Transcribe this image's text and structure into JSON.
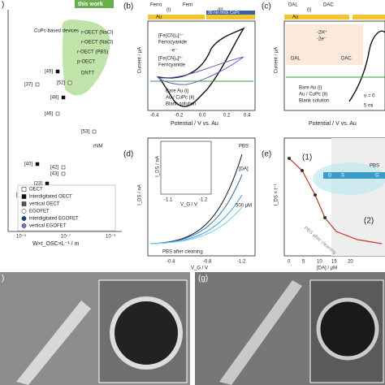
{
  "panel_a": {
    "label": ")",
    "this_work": "this work",
    "cupc": "CuPc-based devices",
    "devices": [
      "r-OECT (NaCl)",
      "r-OECT (NaCl)",
      "r-OECT (PBS)",
      "p-OECT",
      "DNTT",
      "rNM"
    ],
    "refs": [
      "[49]",
      "[37]",
      "[52]",
      "[48]",
      "[46]",
      "[53]",
      "[40]",
      "[42]",
      "[43]",
      "[23]",
      "[21]",
      "[51]",
      "[50]",
      "[45]",
      "[55]"
    ],
    "legend": [
      "OECT",
      "interdigitated OECT",
      "vertical OECT",
      "EGOFET",
      "interdigitated EGOFET",
      "vertical EGOFET"
    ],
    "xlabel": "W×t_OSC×L⁻¹ / m",
    "xticks": [
      "10⁻⁵",
      "10⁻⁷",
      "10⁻⁹"
    ]
  },
  "panel_b": {
    "label": "(b)",
    "top": [
      "Ferro",
      "(i)",
      "Ferri",
      "(ii)"
    ],
    "au": "Au",
    "film": "30 nm thick CuPc",
    "species": [
      "[Fe(CN)₆]⁴⁻",
      "Ferrocyanide",
      "-e⁻",
      "[Fe(CN)₆]³⁻",
      "Ferricyanide"
    ],
    "ylabel": "Current / μA",
    "xlabel": "Potential / V vs. Au",
    "xticks": [
      "-0.4",
      "-0.2",
      "0.0",
      "0.2",
      "0.4"
    ],
    "legend": [
      "Bare Au (i)",
      "Au / CuPc (ii)",
      "Blank solution"
    ]
  },
  "panel_c": {
    "label": "(c)",
    "top": [
      "DAL",
      "(i)",
      "DAC"
    ],
    "au": "Au",
    "species": [
      "DAL",
      "-2H⁺",
      "-2e⁻",
      "DAC"
    ],
    "ylabel": "Current / μA",
    "xlabel": "Potential / V vs. Au",
    "legend": [
      "Bare Au (i)",
      "Au / CuPc (ii)",
      "Blank solution"
    ],
    "note": [
      "υ = 0",
      "5 mi"
    ]
  },
  "panel_d": {
    "label": "(d)",
    "ylabel": "I_DS / nA",
    "xlabel": "V_G / V",
    "xticks": [
      "-0.4",
      "-0.8",
      "-1.2"
    ],
    "inset_x": [
      "-1.1",
      "-1.2"
    ],
    "inset_ylabel": "I_DS / nA",
    "inset_xlabel": "V_G / V",
    "series_labels": [
      "PBS",
      "[DA]",
      "500 μM"
    ],
    "footer": "PBS after cleaning"
  },
  "panel_e": {
    "label": "(e)",
    "ylabel": "I_DS × t⁻¹",
    "xlabel": "[DA] / μM",
    "xticks": [
      "0",
      "5",
      "10",
      "15",
      "20"
    ],
    "regions": [
      "(1)",
      "(2)"
    ],
    "pbs": "PBS",
    "after": "PBS after cleaning",
    "device": [
      "D",
      "S",
      "G"
    ]
  },
  "panel_f": {
    "label": ")"
  },
  "panel_g": {
    "label": "(g)"
  }
}
